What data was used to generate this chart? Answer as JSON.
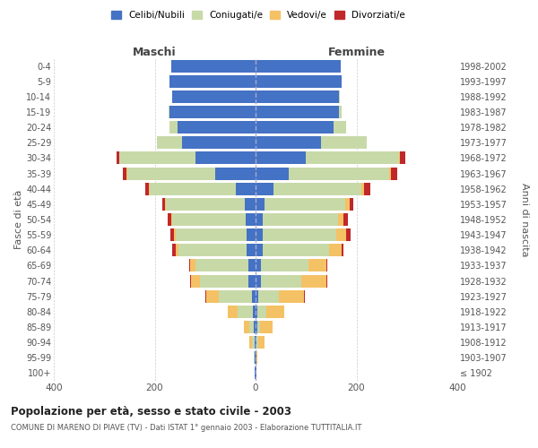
{
  "age_groups": [
    "100+",
    "95-99",
    "90-94",
    "85-89",
    "80-84",
    "75-79",
    "70-74",
    "65-69",
    "60-64",
    "55-59",
    "50-54",
    "45-49",
    "40-44",
    "35-39",
    "30-34",
    "25-29",
    "20-24",
    "15-19",
    "10-14",
    "5-9",
    "0-4"
  ],
  "birth_years": [
    "≤ 1902",
    "1903-1907",
    "1908-1912",
    "1913-1917",
    "1918-1922",
    "1923-1927",
    "1928-1932",
    "1933-1937",
    "1938-1942",
    "1943-1947",
    "1948-1952",
    "1953-1957",
    "1958-1962",
    "1963-1967",
    "1968-1972",
    "1973-1977",
    "1978-1982",
    "1983-1987",
    "1988-1992",
    "1993-1997",
    "1998-2002"
  ],
  "male": {
    "celibi": [
      1,
      1,
      2,
      3,
      5,
      8,
      15,
      15,
      18,
      18,
      20,
      22,
      40,
      80,
      120,
      145,
      155,
      170,
      165,
      170,
      168
    ],
    "coniugati": [
      1,
      2,
      5,
      10,
      30,
      65,
      95,
      105,
      135,
      140,
      145,
      155,
      170,
      175,
      150,
      50,
      15,
      2,
      1,
      0,
      0
    ],
    "vedovi": [
      0,
      1,
      5,
      10,
      20,
      25,
      18,
      10,
      5,
      3,
      2,
      2,
      1,
      1,
      0,
      0,
      0,
      0,
      0,
      0,
      0
    ],
    "divorziati": [
      0,
      0,
      0,
      0,
      1,
      1,
      2,
      2,
      8,
      8,
      8,
      6,
      8,
      8,
      6,
      0,
      0,
      0,
      0,
      0,
      0
    ]
  },
  "female": {
    "nubili": [
      1,
      1,
      2,
      3,
      4,
      6,
      10,
      10,
      15,
      15,
      15,
      18,
      35,
      65,
      100,
      130,
      155,
      165,
      165,
      170,
      168
    ],
    "coniugate": [
      0,
      1,
      3,
      6,
      18,
      40,
      80,
      95,
      130,
      145,
      148,
      160,
      175,
      200,
      185,
      90,
      25,
      5,
      2,
      0,
      0
    ],
    "vedove": [
      1,
      2,
      12,
      25,
      35,
      50,
      50,
      35,
      25,
      20,
      12,
      8,
      5,
      3,
      1,
      1,
      0,
      0,
      0,
      0,
      0
    ],
    "divorziate": [
      0,
      0,
      0,
      0,
      0,
      1,
      2,
      2,
      5,
      8,
      8,
      8,
      12,
      12,
      10,
      0,
      0,
      0,
      0,
      0,
      0
    ]
  },
  "colors": {
    "celibi_nubili": "#4472c4",
    "coniugati": "#c8d9a8",
    "vedovi": "#f5c165",
    "divorziati": "#c0282a"
  },
  "title": "Popolazione per età, sesso e stato civile - 2003",
  "subtitle": "COMUNE DI MARENO DI PIAVE (TV) - Dati ISTAT 1° gennaio 2003 - Elaborazione TUTTITALIA.IT",
  "xlabel_left": "Maschi",
  "xlabel_right": "Femmine",
  "ylabel_left": "Fasce di età",
  "ylabel_right": "Anni di nascita",
  "xlim": 400,
  "background_color": "#ffffff",
  "grid_color": "#cccccc"
}
